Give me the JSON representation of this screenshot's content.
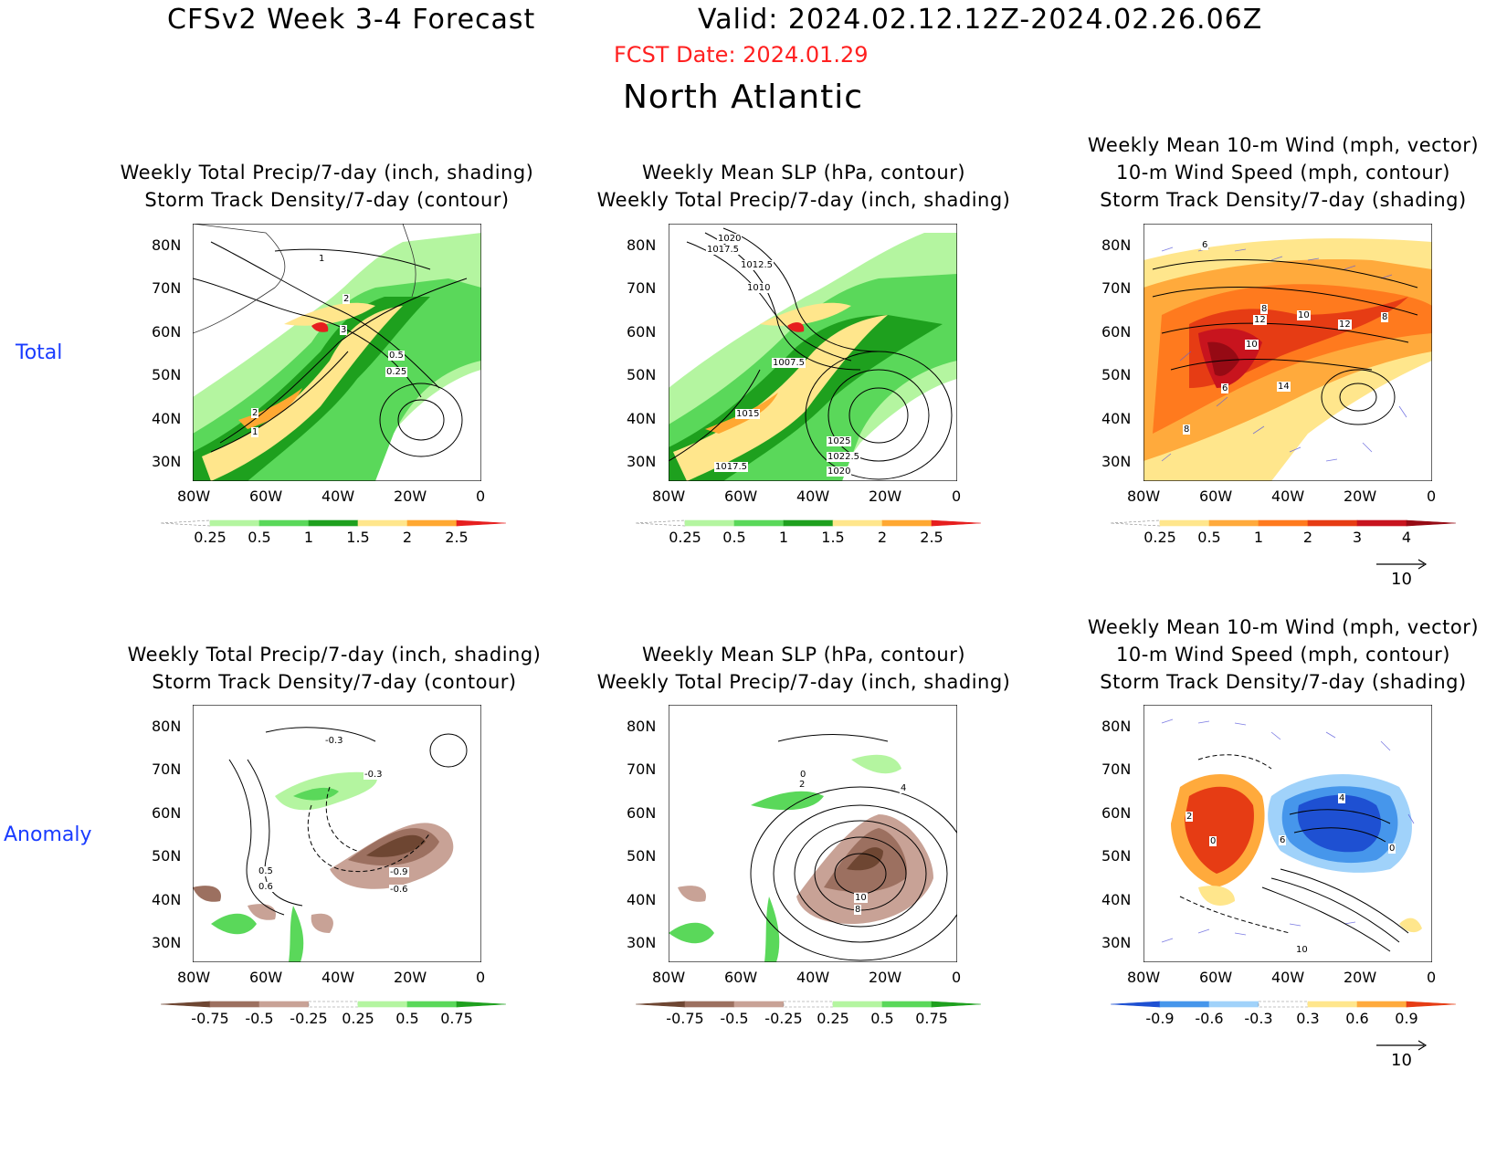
{
  "header": {
    "title_left": "CFSv2 Week 3-4 Forecast",
    "title_right": "Valid: 2024.02.12.12Z-2024.02.26.06Z",
    "fcst_date": "FCST Date: 2024.01.29",
    "region": "North Atlantic"
  },
  "rows": {
    "total": "Total",
    "anomaly": "Anomaly"
  },
  "panels": {
    "p1": [
      "Weekly Total Precip/7-day (inch, shading)",
      "Storm Track Density/7-day (contour)"
    ],
    "p2": [
      "Weekly Mean SLP (hPa, contour)",
      "Weekly Total Precip/7-day (inch, shading)"
    ],
    "p3": [
      "Weekly Mean 10-m Wind (mph, vector)",
      "10-m Wind Speed (mph, contour)",
      "Storm Track Density/7-day (shading)"
    ],
    "p4": [
      "Weekly Total Precip/7-day (inch, shading)",
      "Storm Track Density/7-day (contour)"
    ],
    "p5": [
      "Weekly Mean SLP (hPa, contour)",
      "Weekly Total Precip/7-day (inch, shading)"
    ],
    "p6": [
      "Weekly Mean 10-m Wind (mph, vector)",
      "10-m Wind Speed (mph, contour)",
      "Storm Track Density/7-day (shading)"
    ]
  },
  "axes": {
    "lat": [
      "80N",
      "70N",
      "60N",
      "50N",
      "40N",
      "30N"
    ],
    "lon": [
      "80W",
      "60W",
      "40W",
      "20W",
      "0"
    ]
  },
  "colorbars": {
    "precip_total": [
      "0.25",
      "0.5",
      "1",
      "1.5",
      "2",
      "2.5"
    ],
    "storm_total": [
      "0.25",
      "0.5",
      "1",
      "2",
      "3",
      "4"
    ],
    "precip_anom": [
      "-0.75",
      "-0.5",
      "-0.25",
      "0.25",
      "0.5",
      "0.75"
    ],
    "storm_anom": [
      "-0.9",
      "-0.6",
      "-0.3",
      "0.3",
      "0.6",
      "0.9"
    ]
  },
  "vector_ref": "10",
  "contour_labels": {
    "p1": [
      "1",
      "2",
      "3",
      "0.5",
      "0.25",
      "2",
      "1"
    ],
    "p2": [
      "1020",
      "1017.5",
      "1012.5",
      "1010",
      "1007.5",
      "1015",
      "1017.5",
      "1025",
      "1022.5",
      "1020"
    ],
    "p3": [
      "6",
      "12",
      "8",
      "10",
      "12",
      "8",
      "10",
      "6",
      "14",
      "8"
    ],
    "p4": [
      "-0.3",
      "-0.3",
      "0.5",
      "0.6",
      "-0.9",
      "-0.6"
    ],
    "p5": [
      "0",
      "2",
      "4",
      "10",
      "8"
    ],
    "p6": [
      "2",
      "0",
      "4",
      "6",
      "0",
      "10"
    ]
  },
  "colors": {
    "precip_total": [
      "#ffffff",
      "#b4f5a0",
      "#5ad85a",
      "#1ea01e",
      "#ffe68c",
      "#ffa832",
      "#e61e1e"
    ],
    "storm_total": [
      "#ffffff",
      "#ffe68c",
      "#ffaa3c",
      "#ff7a1e",
      "#e63c14",
      "#c8141e",
      "#960a14"
    ],
    "precip_anom": [
      "#6e4632",
      "#9c7060",
      "#c8a296",
      "#ffffff",
      "#b4f5a0",
      "#5ad85a",
      "#1ea01e"
    ],
    "storm_anom": [
      "#1e50d2",
      "#4696eb",
      "#a0d2fa",
      "#ffffff",
      "#ffe68c",
      "#ffaa3c",
      "#e63c14"
    ],
    "header_date": "#ff2020",
    "row_label": "#1a3cff"
  }
}
